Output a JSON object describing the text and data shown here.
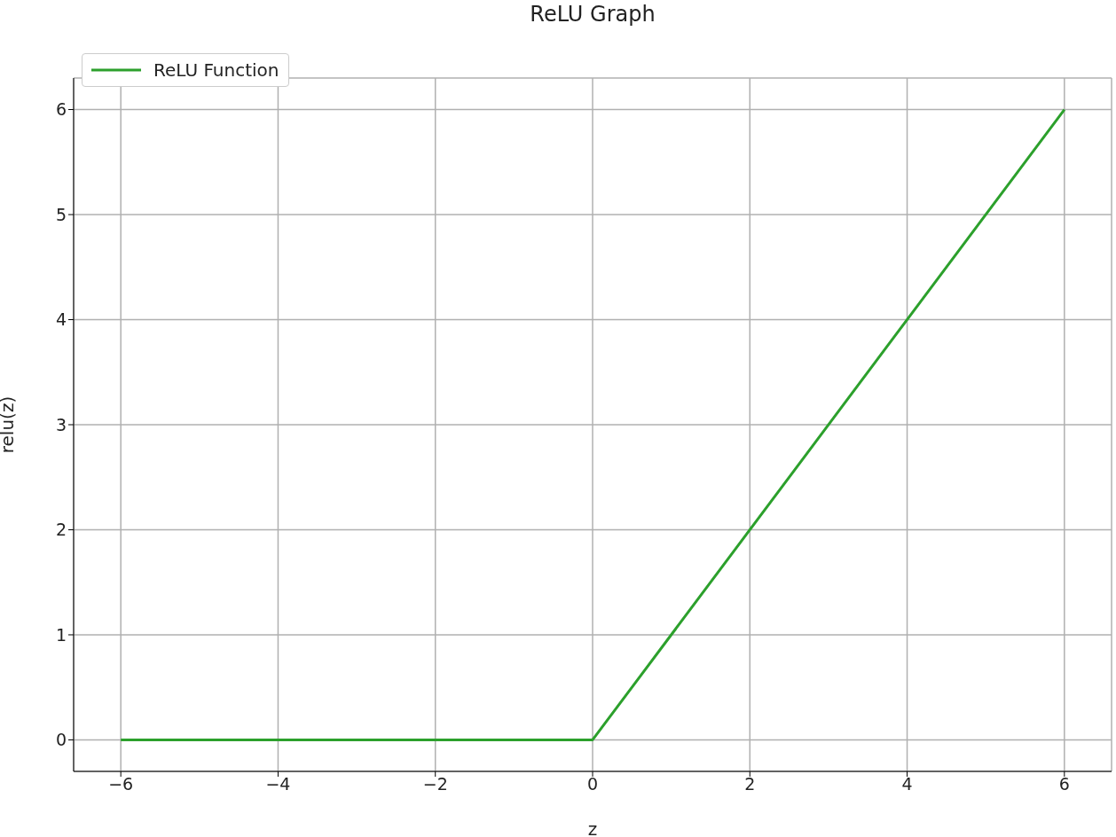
{
  "chart_data": {
    "type": "line",
    "title": "ReLU Graph",
    "xlabel": "z",
    "ylabel": "relu(z)",
    "x": [
      -6,
      0,
      6
    ],
    "series": [
      {
        "name": "ReLU Function",
        "color": "#2ca02c",
        "values": [
          0,
          0,
          6
        ]
      }
    ],
    "xlim": [
      -6.6,
      6.6
    ],
    "xticks": [
      -6,
      -4,
      -2,
      0,
      2,
      4,
      6
    ],
    "ylim": [
      -0.3,
      6.3
    ],
    "yticks": [
      0,
      1,
      2,
      3,
      4,
      5,
      6
    ],
    "grid": true,
    "legend": "top left"
  }
}
